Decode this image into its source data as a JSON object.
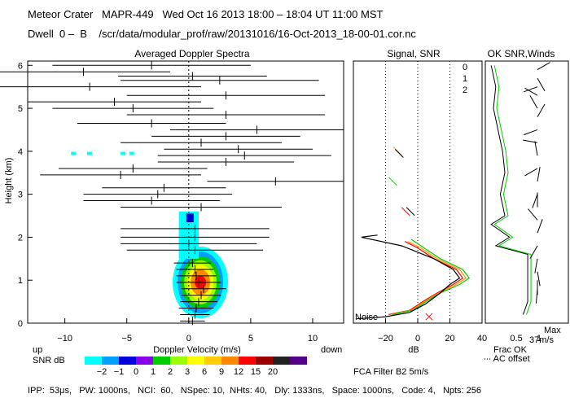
{
  "header": {
    "line1": "Meteor Crater   MAPR-449   Wed Oct 16 2013 18:00 – 18:04 UT 11:00 MST",
    "line2": "Dwell  0 –  B    /scr/data/modular_prof/raw/20131016/16-Oct-2013_18-00-01.cor.nc"
  },
  "footer": "IPP:  53μs,   PW: 1000ns,   NCI:  60,   NSpec: 10,  NHts: 40,   Dly: 1333ns,   Space: 1000ns,   Code: 4,   Npts: 256",
  "spectra_panel": {
    "title": "Averaged Doppler Spectra",
    "ylabel": "Height (km)",
    "xlabel": "Doppler Velocity (m/s)",
    "left_label": "up",
    "right_label": "down"
  },
  "snr_scale": {
    "label": "SNR dB",
    "ticks": [
      "−2",
      "−1",
      "0",
      "1",
      "2",
      "3",
      "6",
      "9",
      "12",
      "15",
      "20"
    ],
    "colors": [
      "#00ffff",
      "#00a0ff",
      "#0000dd",
      "#8800ee",
      "#00cc00",
      "#99ff00",
      "#ffff00",
      "#ffcc00",
      "#ff8800",
      "#ff0000",
      "#990000",
      "#222222",
      "#550088"
    ]
  },
  "signal_panel": {
    "title": "Signal, SNR",
    "xlabel": "dB",
    "noise_label": "Noise",
    "legend": [
      {
        "label": "0",
        "color": "#ff0000"
      },
      {
        "label": "1",
        "color": "#ff9900"
      },
      {
        "label": "2",
        "color": "#00cc00"
      }
    ],
    "filter_label": "FCA Filter B2   5m/s"
  },
  "winds_panel": {
    "title": "OK SNR,Winds",
    "xlabel": "Frac OK",
    "offset_label": "∙∙∙ AC offset",
    "max_label": "Max",
    "max_value": "37m/s"
  },
  "chart_data": [
    {
      "type": "heatmap",
      "title": "Averaged Doppler Spectra",
      "xlabel": "Doppler Velocity (m/s)",
      "ylabel": "Height (km)",
      "xlim": [
        -13,
        12.5
      ],
      "ylim": [
        0,
        6.1
      ],
      "xticks": [
        "−10",
        "−5",
        "0",
        "5",
        "10"
      ],
      "xtick_values": [
        -10,
        -5,
        0,
        5,
        10
      ],
      "yticks": [
        "0",
        "1",
        "2",
        "3",
        "4",
        "5",
        "6"
      ],
      "ytick_values": [
        0,
        1,
        2,
        3,
        4,
        5,
        6
      ],
      "mean_velocity_profile": [
        {
          "h": 6.0,
          "v": -3.0,
          "w": 8.0
        },
        {
          "h": 5.85,
          "v": -8.5,
          "w": 7.0
        },
        {
          "h": 5.75,
          "v": 0.3,
          "w": 6.0
        },
        {
          "h": 5.65,
          "v": 2.5,
          "w": 8.0
        },
        {
          "h": 5.5,
          "v": -8.0,
          "w": 9.0
        },
        {
          "h": 5.3,
          "v": 3.0,
          "w": 8.0
        },
        {
          "h": 5.15,
          "v": -6.0,
          "w": 7.0
        },
        {
          "h": 5.0,
          "v": -4.5,
          "w": 6.5
        },
        {
          "h": 4.85,
          "v": 3.0,
          "w": 8.0
        },
        {
          "h": 4.65,
          "v": -3.0,
          "w": 6.0
        },
        {
          "h": 4.5,
          "v": 5.5,
          "w": 7.0
        },
        {
          "h": 4.35,
          "v": 3.0,
          "w": 6.0
        },
        {
          "h": 4.2,
          "v": 1.0,
          "w": 6.5
        },
        {
          "h": 4.05,
          "v": 4.0,
          "w": 6.0
        },
        {
          "h": 3.9,
          "v": 4.5,
          "w": 7.0
        },
        {
          "h": 3.75,
          "v": 3.0,
          "w": 5.5
        },
        {
          "h": 3.6,
          "v": -4.5,
          "w": 6.0
        },
        {
          "h": 3.45,
          "v": -5.5,
          "w": 6.5
        },
        {
          "h": 3.3,
          "v": 7.0,
          "w": 5.5
        },
        {
          "h": 3.15,
          "v": -2.0,
          "w": 5.0
        },
        {
          "h": 3.0,
          "v": -2.5,
          "w": 6.0
        },
        {
          "h": 2.85,
          "v": -3.0,
          "w": 5.5
        },
        {
          "h": 2.7,
          "v": 1.0,
          "w": 6.5
        },
        {
          "h": 2.2,
          "v": 0.5,
          "w": 6.0
        },
        {
          "h": 2.0,
          "v": 0.5,
          "w": 6.0
        },
        {
          "h": 1.85,
          "v": 0.0,
          "w": 5.5
        },
        {
          "h": 1.7,
          "v": 0.5,
          "w": 5.5
        },
        {
          "h": 1.4,
          "v": 0.3,
          "w": 1.5
        },
        {
          "h": 1.25,
          "v": 0.5,
          "w": 1.5
        },
        {
          "h": 1.1,
          "v": 0.6,
          "w": 1.6
        },
        {
          "h": 0.95,
          "v": 0.8,
          "w": 1.8
        },
        {
          "h": 0.8,
          "v": 1.2,
          "w": 1.8
        },
        {
          "h": 0.65,
          "v": 1.0,
          "w": 1.6
        },
        {
          "h": 0.5,
          "v": 0.8,
          "w": 1.5
        },
        {
          "h": 0.35,
          "v": 0.6,
          "w": 1.4
        },
        {
          "h": 0.2,
          "v": 0.5,
          "w": 1.2
        },
        {
          "h": 0.05,
          "v": 0.3,
          "w": 1.0
        }
      ],
      "snr_region": {
        "description": "strong echo centred near 1 km height and +1 m/s",
        "peak_height_km": 0.95,
        "peak_velocity": 1.2,
        "peak_snr_db": 15
      }
    },
    {
      "type": "line",
      "title": "Signal, SNR",
      "xlabel": "dB",
      "xlim": [
        -40,
        40
      ],
      "ylim": [
        0,
        6.1
      ],
      "xticks": [
        "−20",
        "0",
        "20",
        "40"
      ],
      "xtick_values": [
        -20,
        0,
        20,
        40
      ],
      "reference_lines_db": [
        -20,
        0,
        20
      ],
      "series": [
        {
          "name": "0",
          "color": "#ff0000",
          "points": [
            [
              -18,
              0.2
            ],
            [
              -5,
              0.3
            ],
            [
              3,
              0.5
            ],
            [
              12,
              0.7
            ],
            [
              22,
              0.9
            ],
            [
              28,
              1.05
            ],
            [
              24,
              1.25
            ],
            [
              10,
              1.5
            ],
            [
              0,
              1.75
            ],
            [
              -8,
              1.9
            ]
          ]
        },
        {
          "name": "1",
          "color": "#ff9900",
          "points": [
            [
              -17,
              0.2
            ],
            [
              -4,
              0.3
            ],
            [
              4,
              0.5
            ],
            [
              13,
              0.7
            ],
            [
              24,
              0.9
            ],
            [
              30,
              1.05
            ],
            [
              26,
              1.25
            ],
            [
              12,
              1.5
            ],
            [
              2,
              1.75
            ],
            [
              -6,
              1.9
            ]
          ]
        },
        {
          "name": "2",
          "color": "#00cc00",
          "points": [
            [
              -16,
              0.2
            ],
            [
              -3,
              0.3
            ],
            [
              5,
              0.5
            ],
            [
              14,
              0.7
            ],
            [
              26,
              0.9
            ],
            [
              32,
              1.05
            ],
            [
              28,
              1.25
            ],
            [
              14,
              1.5
            ],
            [
              4,
              1.75
            ],
            [
              -4,
              1.95
            ]
          ]
        },
        {
          "name": "Noise",
          "color": "#000000",
          "points": [
            [
              -38,
              0.1
            ],
            [
              -20,
              0.15
            ],
            [
              -5,
              0.25
            ],
            [
              5,
              0.45
            ],
            [
              14,
              0.7
            ],
            [
              20,
              0.9
            ],
            [
              26,
              1.05
            ],
            [
              22,
              1.25
            ],
            [
              10,
              1.5
            ],
            [
              -10,
              1.8
            ],
            [
              -35,
              2.0
            ],
            [
              -25,
              2.05
            ]
          ]
        }
      ]
    },
    {
      "type": "line",
      "title": "OK SNR,Winds",
      "xlabel": "Frac OK",
      "xlim": [
        0,
        1
      ],
      "ylim": [
        0,
        6.1
      ],
      "xticks": [
        "0.5",
        "1"
      ],
      "xtick_values": [
        0.5,
        1
      ],
      "frac_ok": [
        [
          0.2,
          6.0
        ],
        [
          0.3,
          5.5
        ],
        [
          0.25,
          5.0
        ],
        [
          0.35,
          4.5
        ],
        [
          0.45,
          4.0
        ],
        [
          0.5,
          3.5
        ],
        [
          0.4,
          3.0
        ],
        [
          0.5,
          2.5
        ],
        [
          0.2,
          2.3
        ],
        [
          0.6,
          2.0
        ],
        [
          0.3,
          1.8
        ],
        [
          1.0,
          1.6
        ],
        [
          1.0,
          0.5
        ],
        [
          0.9,
          0.2
        ]
      ]
    }
  ]
}
